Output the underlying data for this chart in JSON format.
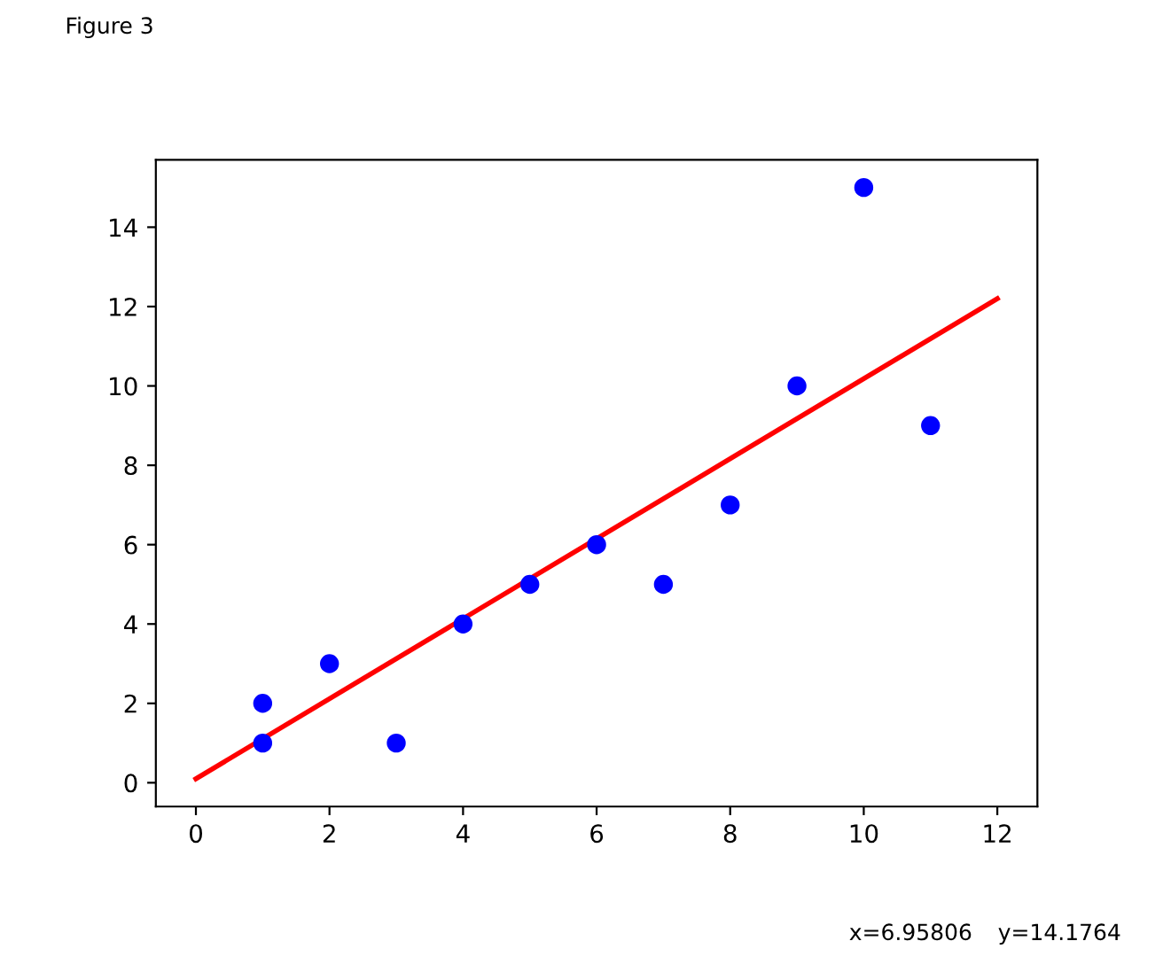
{
  "chart_data": {
    "type": "scatter",
    "title": "Figure 3",
    "annotations": [
      "x=6.95806",
      "y=14.1764"
    ],
    "series": [
      {
        "color": "#0000ff",
        "marker": "circle",
        "x": [
          1,
          1,
          2,
          3,
          4,
          5,
          6,
          7,
          8,
          9,
          10,
          11
        ],
        "values": [
          2,
          1,
          3,
          1,
          4,
          5,
          6,
          5,
          7,
          10,
          15,
          9
        ]
      },
      {
        "type": "line",
        "color": "#ff0000",
        "line_style": "solid",
        "x": [
          0,
          12
        ],
        "values": [
          0.1,
          12.2
        ]
      }
    ],
    "xlim": [
      -0.6,
      12.6
    ],
    "ylim": [
      -0.6,
      15.7
    ],
    "xticks": [
      0,
      2,
      4,
      6,
      8,
      10,
      12
    ],
    "yticks": [
      0,
      2,
      4,
      6,
      8,
      10,
      12,
      14
    ],
    "grid": false,
    "legend": false
  }
}
